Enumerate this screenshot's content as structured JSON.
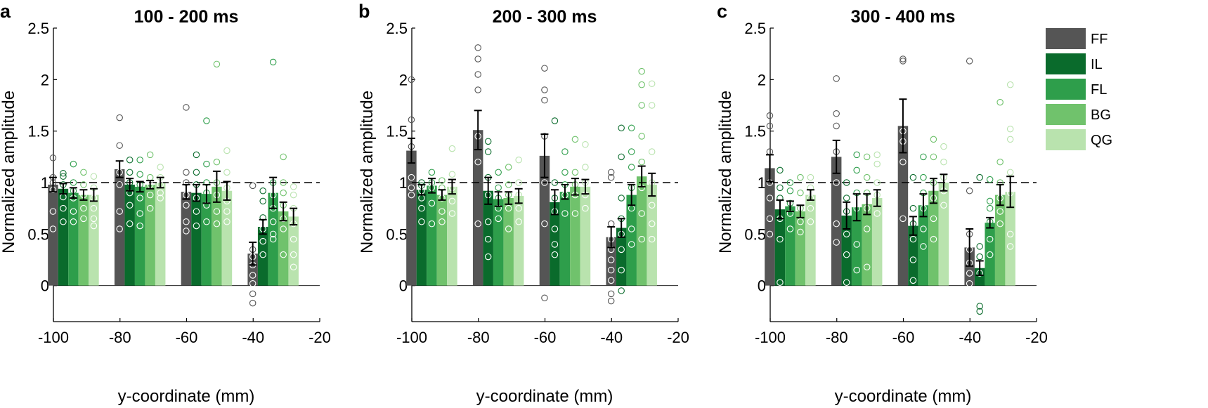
{
  "chart_data": {
    "type": "bar",
    "series_names": [
      "FF",
      "IL",
      "FL",
      "BG",
      "QG"
    ],
    "series_colors": [
      "#555555",
      "#0a6b2c",
      "#2e9e4b",
      "#70c26c",
      "#b9e3ae"
    ],
    "xlabel": "y-coordinate (mm)",
    "ylabel": "Normalized amplitude",
    "xlim": [
      -100,
      -20
    ],
    "xticks": [
      -100,
      -80,
      -60,
      -40,
      -20
    ],
    "ylim": [
      -0.35,
      2.5
    ],
    "yticks": [
      0,
      0.5,
      1,
      1.5,
      2,
      2.5
    ],
    "reference_line": 1,
    "legend": {
      "entries": [
        "FF",
        "IL",
        "FL",
        "BG",
        "QG"
      ],
      "placement": "top-right"
    },
    "groups_x": [
      -94,
      -74,
      -54,
      -34
    ],
    "panels": [
      {
        "letter": "a",
        "title": "100 - 200 ms",
        "series": [
          {
            "name": "FF",
            "values": [
              0.98,
              1.13,
              0.91,
              0.31
            ],
            "errors": [
              0.07,
              0.08,
              0.07,
              0.11
            ],
            "points": [
              [
                1.24,
                1.05,
                1.0,
                0.93,
                0.72,
                0.55
              ],
              [
                1.63,
                1.36,
                1.1,
                0.98,
                0.72,
                0.55
              ],
              [
                1.73,
                1.1,
                1.0,
                0.88,
                0.78,
                0.62,
                0.53
              ],
              [
                0.97,
                0.35,
                0.28,
                0.2,
                0.1,
                0.02,
                -0.08,
                -0.17
              ]
            ]
          },
          {
            "name": "IL",
            "values": [
              0.94,
              0.98,
              0.9,
              0.57
            ],
            "errors": [
              0.05,
              0.06,
              0.08,
              0.07
            ],
            "points": [
              [
                1.09,
                1.06,
                0.98,
                0.86,
                0.75,
                0.62
              ],
              [
                1.22,
                1.1,
                1.0,
                0.9,
                0.78,
                0.6
              ],
              [
                1.27,
                1.1,
                0.98,
                0.85,
                0.72,
                0.58
              ],
              [
                0.92,
                0.82,
                0.66,
                0.55,
                0.43,
                0.3
              ]
            ]
          },
          {
            "name": "FL",
            "values": [
              0.9,
              0.96,
              0.89,
              0.9
            ],
            "errors": [
              0.05,
              0.05,
              0.09,
              0.15
            ],
            "points": [
              [
                1.18,
                1.0,
                0.92,
                0.85,
                0.72,
                0.62
              ],
              [
                1.22,
                1.08,
                0.98,
                0.85,
                0.7,
                0.58
              ],
              [
                1.6,
                1.18,
                1.0,
                0.9,
                0.78,
                0.62
              ],
              [
                2.17,
                1.0,
                0.88,
                0.75,
                0.62,
                0.5,
                0.45
              ]
            ]
          },
          {
            "name": "BG",
            "values": [
              0.88,
              0.98,
              0.96,
              0.72
            ],
            "errors": [
              0.05,
              0.04,
              0.15,
              0.09
            ],
            "points": [
              [
                1.1,
                0.98,
                0.88,
                0.75,
                0.65
              ],
              [
                1.27,
                1.05,
                0.98,
                0.88,
                0.75
              ],
              [
                2.15,
                1.2,
                1.0,
                0.88,
                0.72,
                0.6
              ],
              [
                1.25,
                1.0,
                0.9,
                0.78,
                0.65,
                0.55,
                0.3
              ]
            ]
          },
          {
            "name": "QG",
            "values": [
              0.88,
              1.0,
              0.92,
              0.67
            ],
            "errors": [
              0.06,
              0.05,
              0.09,
              0.08
            ],
            "points": [
              [
                1.06,
                0.95,
                0.85,
                0.75,
                0.65,
                0.58
              ],
              [
                1.15,
                1.05,
                0.98,
                0.9,
                0.85
              ],
              [
                1.31,
                1.1,
                0.95,
                0.82,
                0.72,
                0.62
              ],
              [
                0.96,
                0.88,
                0.75,
                0.6,
                0.45,
                0.3,
                0.18
              ]
            ]
          }
        ]
      },
      {
        "letter": "b",
        "title": "200 - 300 ms",
        "series": [
          {
            "name": "FF",
            "values": [
              1.31,
              1.51,
              1.26,
              0.47
            ],
            "errors": [
              0.12,
              0.19,
              0.21,
              0.1
            ],
            "points": [
              [
                2.0,
                1.61,
                1.35,
                1.05,
                0.95,
                0.88
              ],
              [
                2.31,
                2.2,
                2.05,
                1.9,
                1.45,
                1.2,
                0.6
              ],
              [
                2.11,
                1.9,
                1.8,
                1.45,
                1.0,
                0.6,
                -0.12
              ],
              [
                1.1,
                1.05,
                0.6,
                0.45,
                0.35,
                0.25,
                0.15,
                0.05,
                -0.08,
                -0.15
              ]
            ]
          },
          {
            "name": "IL",
            "values": [
              0.93,
              0.92,
              0.81,
              0.56
            ],
            "errors": [
              0.05,
              0.13,
              0.12,
              0.09
            ],
            "points": [
              [
                1.0,
                0.97,
                0.92,
                0.85,
                0.75,
                0.62
              ],
              [
                1.4,
                1.3,
                1.05,
                0.88,
                0.62,
                0.45,
                0.28
              ],
              [
                1.6,
                1.0,
                0.85,
                0.72,
                0.55,
                0.4,
                0.3
              ],
              [
                1.53,
                1.25,
                0.85,
                0.65,
                0.5,
                0.35,
                0.15,
                -0.05
              ]
            ]
          },
          {
            "name": "FL",
            "values": [
              0.97,
              0.84,
              0.91,
              0.88
            ],
            "errors": [
              0.07,
              0.07,
              0.07,
              0.1
            ],
            "points": [
              [
                1.1,
                1.0,
                0.95,
                0.8,
                0.6
              ],
              [
                1.1,
                0.95,
                0.85,
                0.75,
                0.65
              ],
              [
                1.3,
                1.1,
                0.98,
                0.88,
                0.7
              ],
              [
                1.53,
                1.3,
                1.15,
                0.95,
                0.75,
                0.55,
                0.4
              ]
            ]
          },
          {
            "name": "BG",
            "values": [
              0.88,
              0.85,
              0.96,
              1.06
            ],
            "errors": [
              0.05,
              0.06,
              0.08,
              0.1
            ],
            "points": [
              [
                1.02,
                0.95,
                0.85,
                0.72,
                0.62
              ],
              [
                1.15,
                0.98,
                0.88,
                0.75,
                0.55
              ],
              [
                1.42,
                1.1,
                0.98,
                0.88,
                0.7
              ],
              [
                2.08,
                1.95,
                1.75,
                1.45,
                1.2,
                0.95,
                0.7,
                0.45
              ]
            ]
          },
          {
            "name": "QG",
            "values": [
              0.96,
              0.87,
              0.96,
              0.98
            ],
            "errors": [
              0.07,
              0.07,
              0.07,
              0.11
            ],
            "points": [
              [
                1.33,
                1.08,
                0.95,
                0.82,
                0.7
              ],
              [
                1.22,
                1.0,
                0.88,
                0.75,
                0.62
              ],
              [
                1.37,
                1.15,
                1.0,
                0.88,
                0.75
              ],
              [
                1.96,
                1.75,
                1.3,
                1.0,
                0.78,
                0.6,
                0.45
              ]
            ]
          }
        ]
      },
      {
        "letter": "c",
        "title": "300 - 400 ms",
        "series": [
          {
            "name": "FF",
            "values": [
              1.14,
              1.25,
              1.55,
              0.37
            ],
            "errors": [
              0.13,
              0.16,
              0.26,
              0.18
            ],
            "points": [
              [
                1.65,
                1.55,
                1.3,
                1.0,
                0.85,
                0.65,
                0.5
              ],
              [
                2.01,
                1.67,
                1.55,
                1.3,
                1.0,
                0.6,
                0.42
              ],
              [
                2.2,
                2.18,
                1.5,
                1.4,
                1.2,
                0.65
              ],
              [
                2.18,
                0.92,
                0.5,
                0.35,
                0.22,
                0.12,
                0.02
              ]
            ]
          },
          {
            "name": "IL",
            "values": [
              0.74,
              0.68,
              0.58,
              0.17
            ],
            "errors": [
              0.09,
              0.13,
              0.09,
              0.07
            ],
            "points": [
              [
                1.12,
                0.95,
                0.85,
                0.65,
                0.45,
                0.03
              ],
              [
                1.0,
                0.85,
                0.72,
                0.5,
                0.3,
                0.03
              ],
              [
                1.05,
                0.75,
                0.6,
                0.45,
                0.25,
                0.05
              ],
              [
                1.05,
                0.38,
                0.28,
                0.12,
                -0.2,
                -0.25
              ]
            ]
          },
          {
            "name": "FL",
            "values": [
              0.77,
              0.76,
              0.78,
              0.61
            ],
            "errors": [
              0.05,
              0.13,
              0.11,
              0.05
            ],
            "points": [
              [
                1.0,
                0.92,
                0.8,
                0.7,
                0.55
              ],
              [
                1.27,
                1.12,
                0.9,
                0.75,
                0.4,
                0.15
              ],
              [
                1.25,
                1.05,
                0.9,
                0.75,
                0.55,
                0.38
              ],
              [
                1.03,
                0.82,
                0.75,
                0.62,
                0.45,
                0.3
              ]
            ]
          },
          {
            "name": "BG",
            "values": [
              0.72,
              0.79,
              0.92,
              0.88
            ],
            "errors": [
              0.06,
              0.1,
              0.12,
              0.1
            ],
            "points": [
              [
                1.05,
                0.9,
                0.75,
                0.62,
                0.52
              ],
              [
                1.25,
                1.05,
                0.9,
                0.75,
                0.55,
                0.18
              ],
              [
                1.42,
                1.25,
                1.0,
                0.85,
                0.65,
                0.45
              ],
              [
                1.78,
                1.2,
                1.0,
                0.85,
                0.72,
                0.6
              ]
            ]
          },
          {
            "name": "QG",
            "values": [
              0.88,
              0.85,
              1.0,
              0.91
            ],
            "errors": [
              0.05,
              0.08,
              0.08,
              0.15
            ],
            "points": [
              [
                1.05,
                0.95,
                0.85,
                0.75,
                0.62
              ],
              [
                1.27,
                1.18,
                1.0,
                0.88,
                0.7
              ],
              [
                1.35,
                1.2,
                1.05,
                0.92,
                0.78
              ],
              [
                1.95,
                1.52,
                1.42,
                1.1,
                0.9,
                0.5,
                0.38
              ]
            ]
          }
        ]
      }
    ]
  }
}
